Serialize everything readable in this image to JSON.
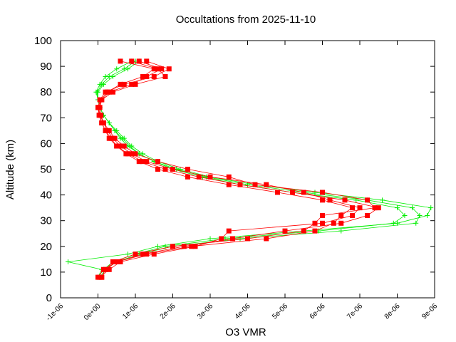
{
  "chart_data": {
    "type": "line",
    "title": "Occultations from 2025-11-10",
    "xlabel": "O3 VMR",
    "ylabel": "Altitude (km)",
    "xlim": [
      -1e-06,
      9e-06
    ],
    "ylim": [
      0,
      100
    ],
    "xticks": [
      -1e-06,
      0,
      1e-06,
      2e-06,
      3e-06,
      4e-06,
      5e-06,
      6e-06,
      7e-06,
      8e-06,
      9e-06
    ],
    "xtick_labels": [
      "-1e-06",
      "0e+00",
      "1e-06",
      "2e-06",
      "3e-06",
      "4e-06",
      "5e-06",
      "6e-06",
      "7e-06",
      "8e-06",
      "9e-06"
    ],
    "yticks": [
      0,
      10,
      20,
      30,
      40,
      50,
      60,
      70,
      80,
      90,
      100
    ],
    "ytick_labels": [
      "0",
      "10",
      "20",
      "30",
      "40",
      "50",
      "60",
      "70",
      "80",
      "90",
      "100"
    ],
    "grid": false,
    "legend": "none",
    "altitude": [
      8,
      11,
      14,
      17,
      20,
      23,
      26,
      29,
      32,
      35,
      38,
      41,
      44,
      47,
      50,
      53,
      56,
      59,
      62,
      65,
      68,
      71,
      74,
      77,
      80,
      83,
      86,
      89,
      92
    ],
    "series": [
      {
        "color": "#00ee00",
        "marker": "plus",
        "values": [
          0.0,
          1e-07,
          -8e-07,
          8e-07,
          1.6e-06,
          3e-06,
          5.5e-06,
          8e-06,
          8.8e-06,
          8.9e-06,
          7.6e-06,
          5.8e-06,
          4.2e-06,
          3e-06,
          2.2e-06,
          1.6e-06,
          1.2e-06,
          9e-07,
          7e-07,
          5e-07,
          3e-07,
          1.5e-07,
          5e-08,
          0.0,
          -5e-08,
          5e-08,
          2e-07,
          5e-07,
          9e-07
        ]
      },
      {
        "color": "#00ee00",
        "marker": "plus",
        "values": [
          5e-08,
          2e-07,
          5e-07,
          1.1e-06,
          2e-06,
          3.8e-06,
          6.5e-06,
          8.5e-06,
          8.6e-06,
          8.4e-06,
          7.2e-06,
          5.5e-06,
          4e-06,
          2.9e-06,
          2.1e-06,
          1.5e-06,
          1.1e-06,
          8.5e-07,
          6.5e-07,
          4.5e-07,
          3e-07,
          1.5e-07,
          5e-08,
          0.0,
          -2e-08,
          1e-07,
          3e-07,
          7e-07,
          1e-06
        ]
      },
      {
        "color": "#00ee00",
        "marker": "plus",
        "values": [
          0.0,
          1.5e-07,
          4e-07,
          1e-06,
          1.8e-06,
          3.4e-06,
          5.9e-06,
          7.9e-06,
          8.2e-06,
          8e-06,
          6.9e-06,
          5.2e-06,
          3.8e-06,
          2.8e-06,
          2e-06,
          1.5e-06,
          1.1e-06,
          8e-07,
          6e-07,
          4.5e-07,
          3e-07,
          1.5e-07,
          5e-08,
          0.0,
          0.0,
          1.5e-07,
          4e-07,
          8e-07,
          1.1e-06
        ]
      },
      {
        "color": "#ff0000",
        "marker": "square",
        "values": [
          1e-07,
          2e-07,
          5e-07,
          1.2e-06,
          2.3e-06,
          3.6e-06,
          5e-06,
          6.5e-06,
          7.2e-06,
          7.5e-06,
          6.6e-06,
          5.2e-06,
          3.8e-06,
          2.7e-06,
          1.8e-06,
          1.2e-06,
          8e-07,
          5e-07,
          3e-07,
          2e-07,
          1e-07,
          5e-08,
          0.0,
          5e-08,
          2e-07,
          7e-07,
          1.5e-06,
          1.9e-06,
          1.3e-06
        ]
      },
      {
        "color": "#ff0000",
        "marker": "square",
        "values": [
          5e-08,
          3e-07,
          6e-07,
          1.5e-06,
          2.6e-06,
          3.3e-06,
          3.5e-06,
          6e-06,
          6.8e-06,
          7e-06,
          6.2e-06,
          5.5e-06,
          4.5e-06,
          3e-06,
          2e-06,
          1.3e-06,
          9e-07,
          6e-07,
          4e-07,
          2.5e-07,
          1.5e-07,
          5e-08,
          2e-08,
          1e-07,
          4e-07,
          1e-06,
          1.8e-06,
          1.6e-06,
          9e-07
        ]
      },
      {
        "color": "#ff0000",
        "marker": "square",
        "values": [
          1e-07,
          2e-07,
          4e-07,
          1e-06,
          2e-06,
          4e-06,
          5.5e-06,
          5.8e-06,
          6e-06,
          7.4e-06,
          7.2e-06,
          6e-06,
          4.2e-06,
          3.5e-06,
          2.4e-06,
          1.6e-06,
          1e-06,
          7e-07,
          4.5e-07,
          3e-07,
          1.5e-07,
          8e-08,
          5e-08,
          1e-07,
          3e-07,
          9e-07,
          1.3e-06,
          1.7e-06,
          1.1e-06
        ]
      },
      {
        "color": "#ff0000",
        "marker": "square",
        "values": [
          0.0,
          1.5e-07,
          5e-07,
          1.3e-06,
          2.5e-06,
          4.5e-06,
          5.8e-06,
          6.3e-06,
          6.5e-06,
          6.8e-06,
          6e-06,
          4.8e-06,
          3.5e-06,
          2.4e-06,
          1.6e-06,
          1.1e-06,
          7.5e-07,
          5e-07,
          3.5e-07,
          2e-07,
          1e-07,
          3e-08,
          0.0,
          8e-08,
          2.5e-07,
          6e-07,
          1.2e-06,
          1.5e-06,
          6e-07
        ]
      }
    ]
  }
}
